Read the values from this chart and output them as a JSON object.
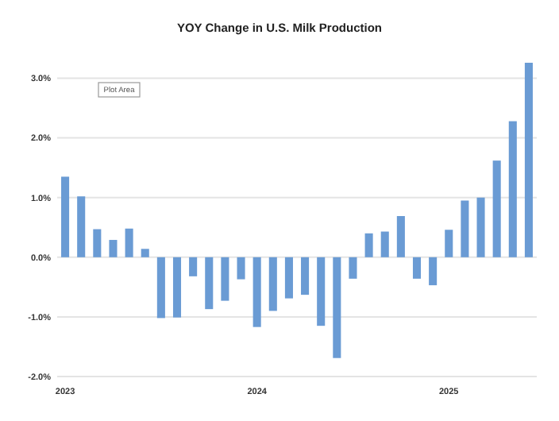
{
  "chart_data": {
    "type": "bar",
    "title": "YOY Change in U.S. Milk Production",
    "categories": [
      "2023",
      null,
      null,
      null,
      null,
      null,
      null,
      null,
      null,
      null,
      null,
      null,
      "2024",
      null,
      null,
      null,
      null,
      null,
      null,
      null,
      null,
      null,
      null,
      null,
      "2025",
      null,
      null,
      null,
      null,
      null
    ],
    "values": [
      1.35,
      1.02,
      0.47,
      0.29,
      0.48,
      0.14,
      -1.02,
      -1.01,
      -0.32,
      -0.87,
      -0.73,
      -0.37,
      -1.17,
      -0.9,
      -0.69,
      -0.63,
      -1.15,
      -1.69,
      -0.36,
      0.4,
      0.43,
      0.69,
      -0.36,
      -0.47,
      0.46,
      0.95,
      1.0,
      1.62,
      2.28,
      3.26
    ],
    "color": "#6a9bd4",
    "ylim": [
      -2,
      3.3
    ],
    "yticks": [
      {
        "value": -2,
        "label": "-2.0%"
      },
      {
        "value": -1,
        "label": "-1.0%"
      },
      {
        "value": 0,
        "label": "0.0%"
      },
      {
        "value": 1,
        "label": "1.0%"
      },
      {
        "value": 2,
        "label": "2.0%"
      },
      {
        "value": 3,
        "label": "3.0%"
      }
    ],
    "grid": "y",
    "annotations": [
      "Plot Area"
    ]
  }
}
